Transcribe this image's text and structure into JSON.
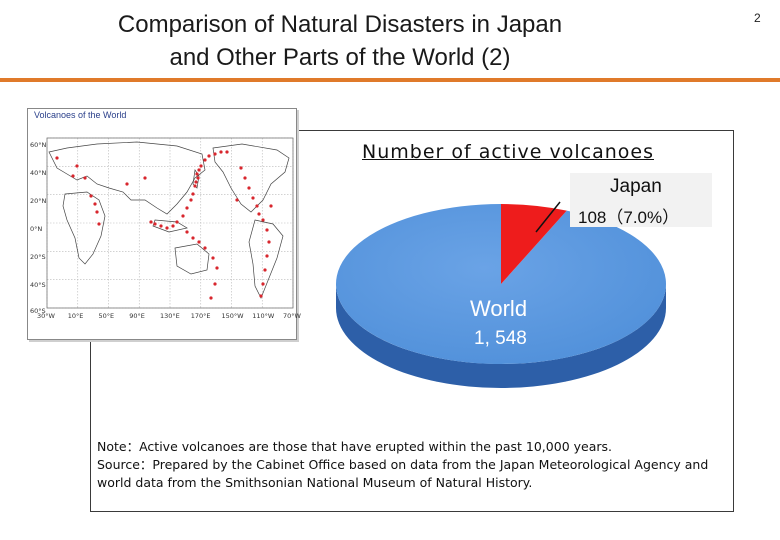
{
  "slide": {
    "title_line1": "Comparison of Natural Disasters in Japan",
    "title_line2": "and Other Parts of the World (2)",
    "page_number": "2",
    "accent_color": "#e07a2a"
  },
  "map": {
    "title": "Volcanoes of the World",
    "lat_labels": [
      "60°N",
      "40°N",
      "20°N",
      "0°N",
      "20°S",
      "40°S",
      "60°S"
    ],
    "lon_labels": [
      "30°W",
      "10°E",
      "50°E",
      "90°E",
      "130°E",
      "170°E",
      "150°W",
      "110°W",
      "70°W"
    ],
    "volcano_color": "#d8262d"
  },
  "chart_data": {
    "type": "pie",
    "title": "Number of active volcanoes",
    "slices": [
      {
        "label": "Japan",
        "value": 108,
        "percent_label": "108（7.0%）",
        "color": "#ee1c1c"
      },
      {
        "label": "World",
        "value": 1548,
        "value_label": "1, 548",
        "color": "#4f8fd9"
      }
    ],
    "notes": [
      "Note：Active volcanoes are those that have erupted within the past 10,000 years.",
      "Source：Prepared by the Cabinet Office based on data from the Japan  Meteorological Agency and",
      "world data from the Smithsonian National Museum of Natural History."
    ]
  }
}
